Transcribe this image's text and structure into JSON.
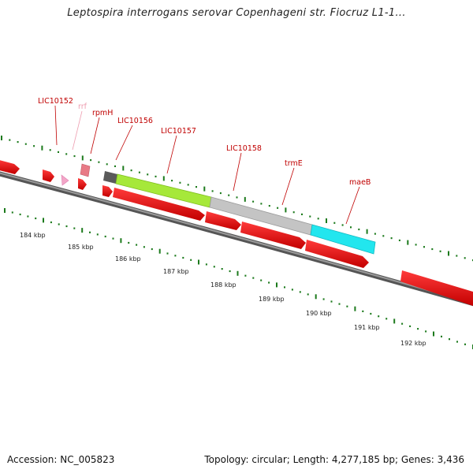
{
  "title": "Leptospira interrogans serovar Copenhageni str. Fiocruz L1-1...",
  "footer": {
    "accession": "Accession: NC_005823",
    "summary": "Topology: circular; Length: 4,277,185 bp; Genes: 3,436"
  },
  "gene_labels": [
    {
      "id": "LIC10152",
      "text": "LIC10152",
      "color": "#c00000"
    },
    {
      "id": "rrf",
      "text": "rrf",
      "color": "#ee9db0"
    },
    {
      "id": "rpmH",
      "text": "rpmH",
      "color": "#c00000"
    },
    {
      "id": "LIC10156",
      "text": "LIC10156",
      "color": "#c00000"
    },
    {
      "id": "LIC10157",
      "text": "LIC10157",
      "color": "#c00000"
    },
    {
      "id": "LIC10158",
      "text": "LIC10158",
      "color": "#c00000"
    },
    {
      "id": "trmE",
      "text": "trmE",
      "color": "#c00000"
    },
    {
      "id": "maeB",
      "text": "maeB",
      "color": "#c00000"
    }
  ],
  "scale_labels": [
    "184 kbp",
    "185 kbp",
    "186 kbp",
    "187 kbp",
    "188 kbp",
    "189 kbp",
    "190 kbp",
    "191 kbp",
    "192 kbp"
  ],
  "colors": {
    "cds": "#ee0000",
    "cds_dark": "#a00000",
    "rna": "#f3a6c8",
    "highlight_green": "#a6e83a",
    "highlight_gray": "#c4c4c4",
    "highlight_cyan": "#22e6ee",
    "highlight_dark": "#5a5a5a",
    "backbone": "#777777",
    "tick": "#1c7a1c"
  }
}
